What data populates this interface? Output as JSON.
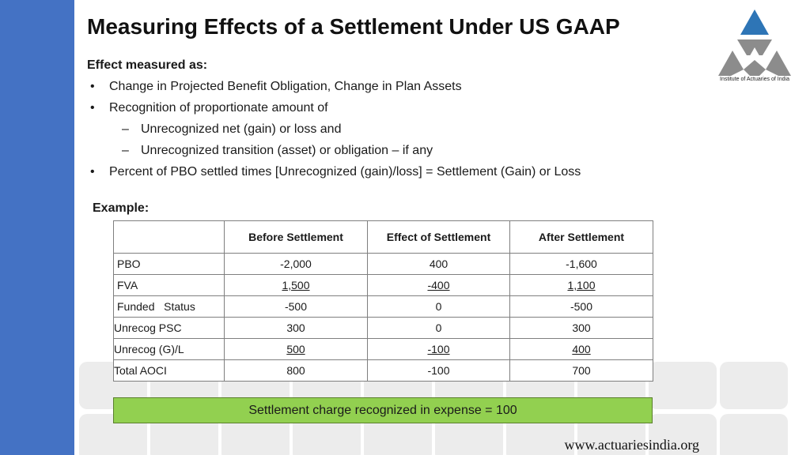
{
  "slide": {
    "title": "Measuring Effects of a Settlement Under US GAAP",
    "logo_caption": "Institute of Actuaries of India",
    "subheading": "Effect measured as:",
    "bullets": [
      "Change in Projected Benefit Obligation, Change in Plan Assets",
      "Recognition of proportionate amount of",
      "Percent of PBO settled times [Unrecognized (gain)/loss] = Settlement (Gain) or Loss"
    ],
    "sub_bullets": [
      "Unrecognized net (gain) or loss and",
      "Unrecognized transition (asset) or obligation – if any"
    ],
    "example_label": "Example:",
    "website": "www.actuariesindia.org",
    "colors": {
      "left_bar": "#4472c4",
      "summary_fill": "#92d050",
      "logo_blue": "#2e75b6",
      "logo_grey": "#8c8c8c"
    }
  },
  "table": {
    "headers": [
      "",
      "Before Settlement",
      "Effect of Settlement",
      "After Settlement"
    ],
    "rows": [
      {
        "label": "PBO",
        "before": "-2,000",
        "effect": "400",
        "after": "-1,600"
      },
      {
        "label": "FVA",
        "before": "1,500",
        "effect": "-400",
        "after": "1,100"
      },
      {
        "label": "Funded   Status",
        "before": "-500",
        "effect": "0",
        "after": "-500"
      },
      {
        "label": "Unrecog PSC",
        "before": "300",
        "effect": "0",
        "after": "300"
      },
      {
        "label": "Unrecog (G)/L",
        "before": "500",
        "effect": "-100",
        "after": "400"
      },
      {
        "label": "Total AOCI",
        "before": "800",
        "effect": "-100",
        "after": "700"
      }
    ],
    "summary": "Settlement charge recognized in expense = 100"
  }
}
